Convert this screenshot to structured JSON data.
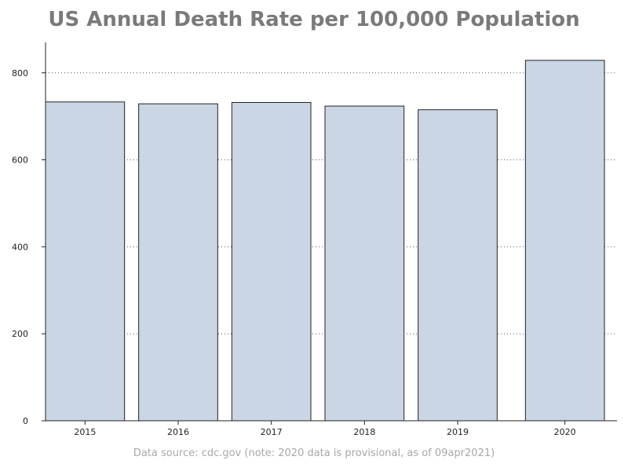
{
  "chart_data": {
    "type": "bar",
    "title": "US Annual Death Rate per 100,000 Population",
    "categories": [
      "2015",
      "2016",
      "2017",
      "2018",
      "2019",
      "2020"
    ],
    "values": [
      733.1,
      728.8,
      731.9,
      723.6,
      715.2,
      828.7
    ],
    "xlabel": "",
    "ylabel": "",
    "ylim": [
      0,
      870
    ],
    "yticks": [
      0,
      200,
      400,
      600,
      800
    ],
    "grid": "horizontal dotted",
    "bar_color": "#cbd6e5",
    "bar_edge_color": "#222222",
    "source_note": "Data source: cdc.gov (note: 2020 data is provisional, as of 09apr2021)"
  }
}
